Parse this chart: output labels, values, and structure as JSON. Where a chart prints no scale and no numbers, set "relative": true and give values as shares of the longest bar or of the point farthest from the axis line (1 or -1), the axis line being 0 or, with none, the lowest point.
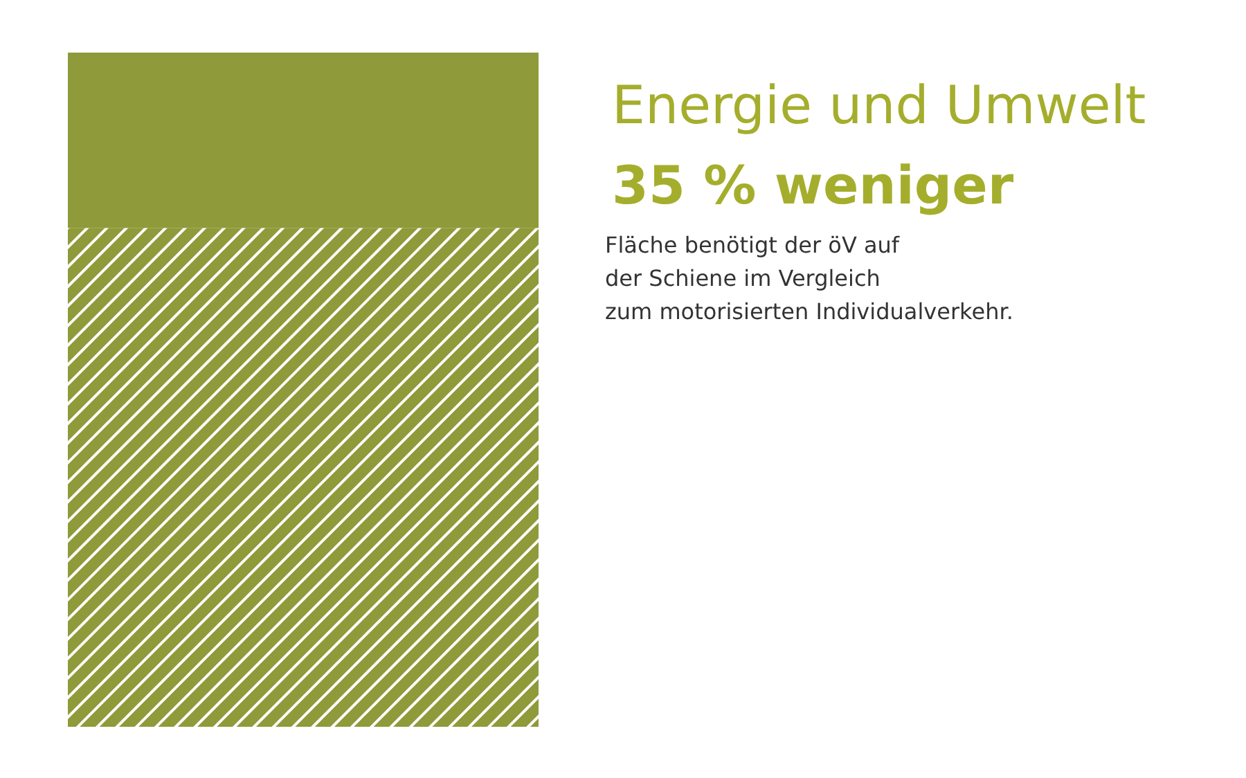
{
  "chart_data": {
    "type": "bar",
    "stacked": true,
    "relative": true,
    "title": "Energie und Umwelt",
    "subtitle": "35 % weniger",
    "annotations": [
      "Fläche benötigt der öV auf\nder Schiene im Vergleich\nzum motorisierten Individualverkehr."
    ],
    "categories": [
      null
    ],
    "series": [
      {
        "color": "#8f9a3a",
        "values": [
          0.74
        ]
      },
      {
        "color": "#8f9a3a",
        "values": [
          0.26
        ]
      }
    ]
  }
}
